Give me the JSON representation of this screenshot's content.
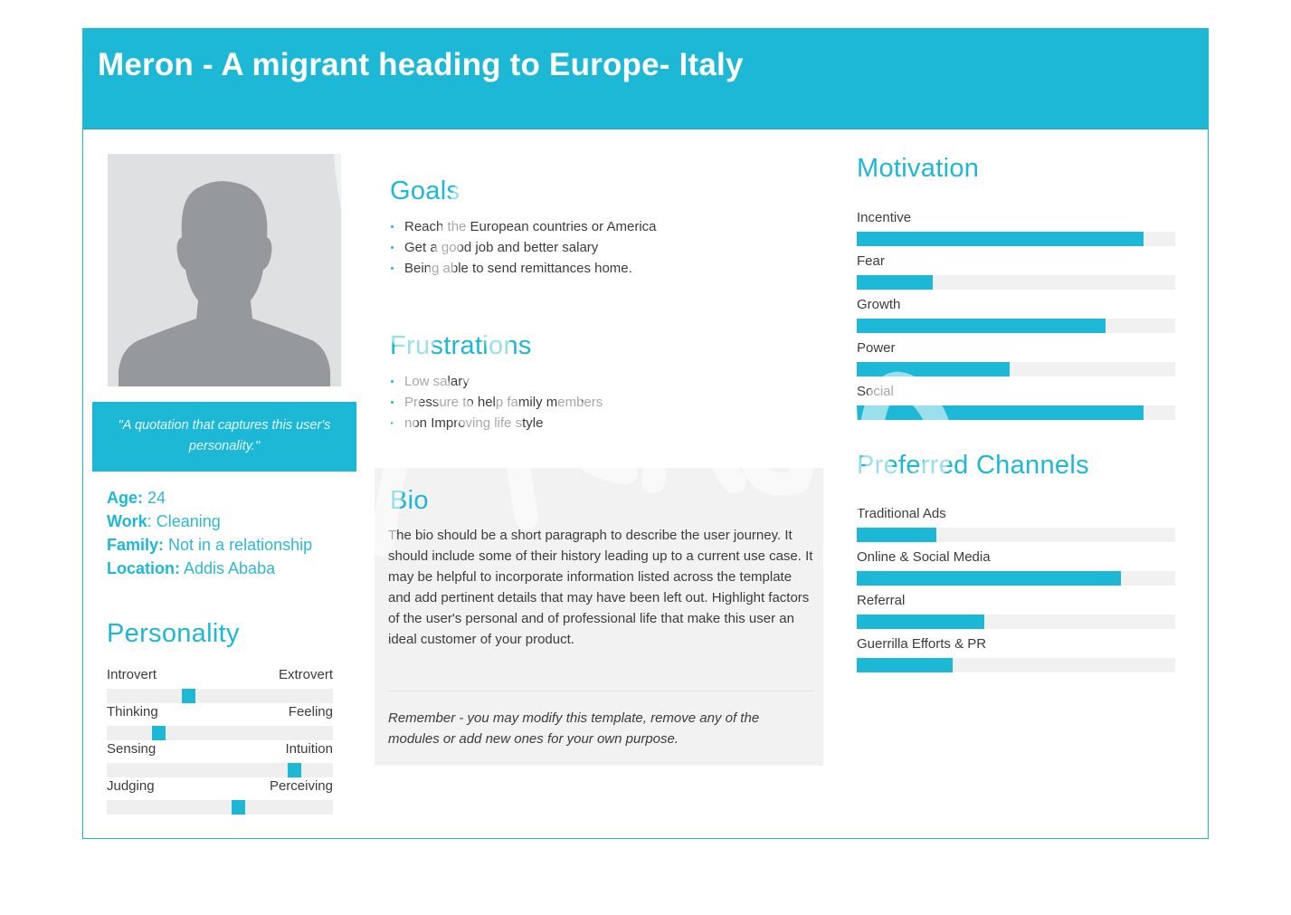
{
  "header": {
    "title": "Meron - A migrant heading to Europe- Italy"
  },
  "watermark": {
    "text": "Xtensio"
  },
  "quote": "\"A quotation that captures this user's personality.\"",
  "facts": [
    {
      "key": "Age:",
      "value": " 24"
    },
    {
      "key": "Work",
      "value": ": Cleaning"
    },
    {
      "key": "Family:",
      "value": " Not in a relationship"
    },
    {
      "key": "Location:",
      "value": " Addis Ababa"
    }
  ],
  "personality": {
    "title": "Personality",
    "scales": [
      {
        "left": "Introvert",
        "right": "Extrovert",
        "value": 0.36
      },
      {
        "left": "Thinking",
        "right": "Feeling",
        "value": 0.23
      },
      {
        "left": "Sensing",
        "right": "Intuition",
        "value": 0.83
      },
      {
        "left": "Judging",
        "right": "Perceiving",
        "value": 0.58
      }
    ]
  },
  "goals": {
    "title": "Goals",
    "items": [
      "Reach the European countries or America",
      "Get a good job and better salary",
      "Being able to send remittances home."
    ]
  },
  "frustrations": {
    "title": "Frustrations",
    "items": [
      "Low salary",
      "Pressure to help family members",
      "non Improving life style"
    ]
  },
  "bio": {
    "title": "Bio",
    "text": "The bio should be a short paragraph to describe the user journey. It should include some of their history leading up to a current use case. It may be helpful to incorporate information listed across the template and add pertinent details that may have been left out. Highlight factors of the user's personal and of professional life that make this user an ideal customer of your product.",
    "note": "Remember - you may modify this template, remove any of the modules or add new ones for your own purpose."
  },
  "motivation": {
    "title": "Motivation",
    "items": [
      {
        "label": "Incentive",
        "value": 0.9
      },
      {
        "label": "Fear",
        "value": 0.24
      },
      {
        "label": "Growth",
        "value": 0.78
      },
      {
        "label": "Power",
        "value": 0.48
      },
      {
        "label": "Social",
        "value": 0.9
      }
    ]
  },
  "channels": {
    "title": "Preferred Channels",
    "items": [
      {
        "label": "Traditional Ads",
        "value": 0.25
      },
      {
        "label": "Online & Social Media",
        "value": 0.83
      },
      {
        "label": "Referral",
        "value": 0.4
      },
      {
        "label": "Guerrilla Efforts & PR",
        "value": 0.3
      }
    ]
  },
  "colors": {
    "accent": "#1cb8d6",
    "track": "#f1f1f2",
    "bioBg": "#f2f2f3",
    "photoBg": "#dfe0e2"
  }
}
